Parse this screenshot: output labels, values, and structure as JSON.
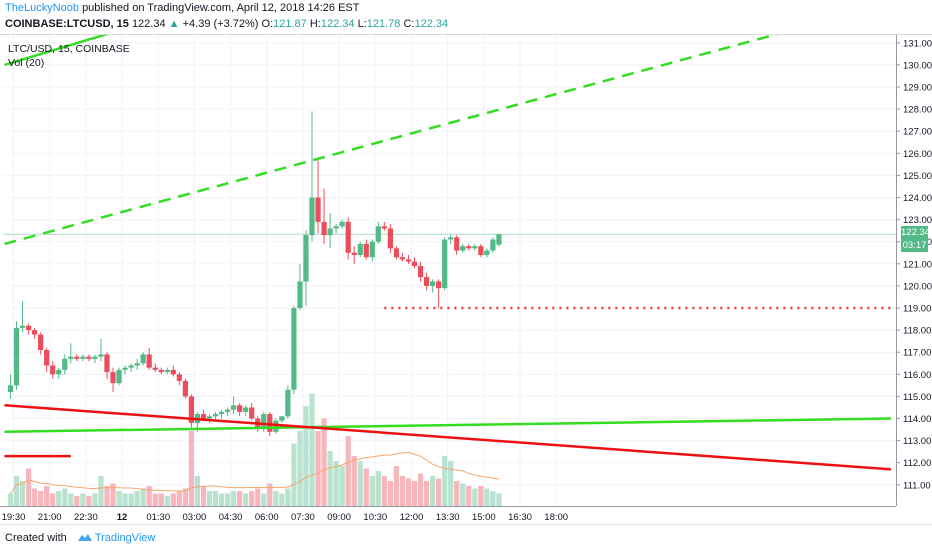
{
  "header": {
    "author": "TheLuckyNoob",
    "published": "published on TradingView.com, April 12, 2018 14:26 EST"
  },
  "ohlc": {
    "symbol": "COINBASE:LTCUSD, 15",
    "last": "122.34",
    "change": "+4.39 (+3.72%)",
    "o_label": "O:",
    "o": "121.87",
    "h_label": "H:",
    "h": "122.34",
    "l_label": "L:",
    "l": "121.78",
    "c_label": "C:",
    "c": "122.34"
  },
  "legend": {
    "series": "LTC/USD, 15, COINBASE",
    "volume": "Vol (20)"
  },
  "price_tags": {
    "last": "122.34",
    "countdown": "03:17"
  },
  "footer": {
    "created_with": "Created with",
    "brand": "TradingView"
  },
  "colors": {
    "up": "#26a69a",
    "up_candle": "#53b987",
    "down_candle": "#eb4d5c",
    "green_line": "#33dd22",
    "red_line": "#ee1111",
    "dotted": "#ee3333",
    "vol_up": "#b9e2cf",
    "vol_down": "#f6b6bc",
    "last_price_bg": "#53b987",
    "countdown_bg": "#53b987",
    "grid": "#f0f3fa"
  },
  "chart_data": {
    "type": "candlestick",
    "ylim": [
      110.5,
      132.2
    ],
    "y_ticks": [
      "111.00",
      "112.00",
      "113.00",
      "114.00",
      "115.00",
      "116.00",
      "117.00",
      "118.00",
      "119.00",
      "120.00",
      "121.00",
      "122.00",
      "123.00",
      "124.00",
      "125.00",
      "126.00",
      "127.00",
      "128.00",
      "129.00",
      "130.00",
      "131.00",
      "132.00"
    ],
    "x_ticks": [
      "19:30",
      "21:00",
      "22:30",
      "12",
      "01:30",
      "03:00",
      "04:30",
      "06:00",
      "07:30",
      "09:00",
      "10:30",
      "12:00",
      "13:30",
      "15:00",
      "16:30",
      "18:00"
    ],
    "bars_per_tick": 6,
    "candles": [
      {
        "o": 115.2,
        "h": 116.0,
        "l": 114.9,
        "c": 115.5
      },
      {
        "o": 115.5,
        "h": 118.4,
        "l": 115.3,
        "c": 118.1
      },
      {
        "o": 118.1,
        "h": 119.3,
        "l": 117.9,
        "c": 118.2
      },
      {
        "o": 118.2,
        "h": 118.3,
        "l": 117.8,
        "c": 118.0
      },
      {
        "o": 118.0,
        "h": 118.1,
        "l": 117.6,
        "c": 117.8
      },
      {
        "o": 117.8,
        "h": 117.9,
        "l": 116.9,
        "c": 117.1
      },
      {
        "o": 117.1,
        "h": 117.2,
        "l": 116.1,
        "c": 116.4
      },
      {
        "o": 116.4,
        "h": 116.6,
        "l": 115.8,
        "c": 116.0
      },
      {
        "o": 116.0,
        "h": 116.3,
        "l": 115.8,
        "c": 116.2
      },
      {
        "o": 116.2,
        "h": 116.9,
        "l": 116.0,
        "c": 116.7
      },
      {
        "o": 116.7,
        "h": 117.4,
        "l": 116.5,
        "c": 116.8
      },
      {
        "o": 116.8,
        "h": 116.9,
        "l": 116.6,
        "c": 116.7
      },
      {
        "o": 116.7,
        "h": 116.9,
        "l": 116.6,
        "c": 116.8
      },
      {
        "o": 116.8,
        "h": 116.9,
        "l": 116.6,
        "c": 116.7
      },
      {
        "o": 116.7,
        "h": 116.9,
        "l": 116.5,
        "c": 116.8
      },
      {
        "o": 116.8,
        "h": 117.6,
        "l": 116.6,
        "c": 116.9
      },
      {
        "o": 116.9,
        "h": 117.0,
        "l": 115.8,
        "c": 116.1
      },
      {
        "o": 116.1,
        "h": 116.3,
        "l": 115.2,
        "c": 115.6
      },
      {
        "o": 115.6,
        "h": 116.3,
        "l": 115.5,
        "c": 116.2
      },
      {
        "o": 116.2,
        "h": 116.4,
        "l": 116.0,
        "c": 116.3
      },
      {
        "o": 116.3,
        "h": 116.5,
        "l": 116.1,
        "c": 116.4
      },
      {
        "o": 116.4,
        "h": 116.7,
        "l": 116.2,
        "c": 116.5
      },
      {
        "o": 116.5,
        "h": 117.0,
        "l": 116.4,
        "c": 116.9
      },
      {
        "o": 116.9,
        "h": 117.2,
        "l": 116.2,
        "c": 116.3
      },
      {
        "o": 116.3,
        "h": 116.5,
        "l": 116.1,
        "c": 116.2
      },
      {
        "o": 116.2,
        "h": 116.3,
        "l": 116.0,
        "c": 116.1
      },
      {
        "o": 116.1,
        "h": 116.3,
        "l": 116.0,
        "c": 116.2
      },
      {
        "o": 116.2,
        "h": 116.4,
        "l": 115.9,
        "c": 116.0
      },
      {
        "o": 116.0,
        "h": 116.1,
        "l": 115.5,
        "c": 115.7
      },
      {
        "o": 115.7,
        "h": 115.8,
        "l": 114.9,
        "c": 115.0
      },
      {
        "o": 115.0,
        "h": 115.1,
        "l": 113.6,
        "c": 113.8
      },
      {
        "o": 113.8,
        "h": 114.3,
        "l": 113.4,
        "c": 114.2
      },
      {
        "o": 114.2,
        "h": 114.4,
        "l": 113.9,
        "c": 114.0
      },
      {
        "o": 114.0,
        "h": 114.2,
        "l": 113.8,
        "c": 114.1
      },
      {
        "o": 114.1,
        "h": 114.3,
        "l": 113.9,
        "c": 114.2
      },
      {
        "o": 114.2,
        "h": 114.4,
        "l": 114.0,
        "c": 114.3
      },
      {
        "o": 114.3,
        "h": 114.5,
        "l": 114.1,
        "c": 114.4
      },
      {
        "o": 114.4,
        "h": 115.0,
        "l": 114.2,
        "c": 114.6
      },
      {
        "o": 114.6,
        "h": 114.7,
        "l": 114.1,
        "c": 114.3
      },
      {
        "o": 114.3,
        "h": 114.6,
        "l": 114.1,
        "c": 114.5
      },
      {
        "o": 114.5,
        "h": 114.7,
        "l": 113.9,
        "c": 114.0
      },
      {
        "o": 114.0,
        "h": 114.1,
        "l": 113.4,
        "c": 113.6
      },
      {
        "o": 113.6,
        "h": 114.3,
        "l": 113.4,
        "c": 114.2
      },
      {
        "o": 114.2,
        "h": 114.3,
        "l": 113.2,
        "c": 113.4
      },
      {
        "o": 113.4,
        "h": 114.0,
        "l": 113.3,
        "c": 113.9
      },
      {
        "o": 113.9,
        "h": 114.1,
        "l": 113.8,
        "c": 114.1
      },
      {
        "o": 114.1,
        "h": 115.5,
        "l": 114.0,
        "c": 115.3
      },
      {
        "o": 115.3,
        "h": 119.1,
        "l": 115.1,
        "c": 119.0
      },
      {
        "o": 119.0,
        "h": 121.0,
        "l": 118.9,
        "c": 120.2
      },
      {
        "o": 120.2,
        "h": 122.5,
        "l": 119.1,
        "c": 122.3
      },
      {
        "o": 122.3,
        "h": 127.9,
        "l": 122.0,
        "c": 124.0
      },
      {
        "o": 124.0,
        "h": 125.7,
        "l": 122.4,
        "c": 122.9
      },
      {
        "o": 122.9,
        "h": 124.4,
        "l": 121.9,
        "c": 122.3
      },
      {
        "o": 122.3,
        "h": 123.3,
        "l": 121.7,
        "c": 122.6
      },
      {
        "o": 122.6,
        "h": 122.8,
        "l": 122.4,
        "c": 122.7
      },
      {
        "o": 122.7,
        "h": 123.0,
        "l": 122.6,
        "c": 122.9
      },
      {
        "o": 122.9,
        "h": 123.1,
        "l": 121.2,
        "c": 121.5
      },
      {
        "o": 121.5,
        "h": 121.8,
        "l": 121.0,
        "c": 121.4
      },
      {
        "o": 121.4,
        "h": 122.0,
        "l": 121.3,
        "c": 121.9
      },
      {
        "o": 121.9,
        "h": 122.1,
        "l": 121.2,
        "c": 121.3
      },
      {
        "o": 121.3,
        "h": 122.1,
        "l": 121.1,
        "c": 122.0
      },
      {
        "o": 122.0,
        "h": 122.9,
        "l": 121.9,
        "c": 122.7
      },
      {
        "o": 122.7,
        "h": 122.9,
        "l": 122.5,
        "c": 122.6
      },
      {
        "o": 122.6,
        "h": 122.8,
        "l": 121.5,
        "c": 121.7
      },
      {
        "o": 121.7,
        "h": 121.8,
        "l": 121.2,
        "c": 121.3
      },
      {
        "o": 121.3,
        "h": 121.5,
        "l": 121.1,
        "c": 121.2
      },
      {
        "o": 121.2,
        "h": 121.4,
        "l": 121.0,
        "c": 121.1
      },
      {
        "o": 121.1,
        "h": 121.3,
        "l": 120.8,
        "c": 120.9
      },
      {
        "o": 120.9,
        "h": 121.1,
        "l": 120.2,
        "c": 120.4
      },
      {
        "o": 120.4,
        "h": 120.6,
        "l": 119.8,
        "c": 120.0
      },
      {
        "o": 120.0,
        "h": 120.3,
        "l": 119.7,
        "c": 120.2
      },
      {
        "o": 120.2,
        "h": 120.3,
        "l": 119.0,
        "c": 119.9
      },
      {
        "o": 119.9,
        "h": 122.2,
        "l": 119.8,
        "c": 122.1
      },
      {
        "o": 122.1,
        "h": 122.3,
        "l": 121.9,
        "c": 122.2
      },
      {
        "o": 122.2,
        "h": 122.3,
        "l": 121.4,
        "c": 121.6
      },
      {
        "o": 121.6,
        "h": 121.9,
        "l": 121.5,
        "c": 121.8
      },
      {
        "o": 121.8,
        "h": 121.9,
        "l": 121.6,
        "c": 121.7
      },
      {
        "o": 121.7,
        "h": 121.9,
        "l": 121.6,
        "c": 121.8
      },
      {
        "o": 121.8,
        "h": 121.9,
        "l": 121.3,
        "c": 121.4
      },
      {
        "o": 121.4,
        "h": 121.7,
        "l": 121.3,
        "c": 121.6
      },
      {
        "o": 121.6,
        "h": 122.2,
        "l": 121.5,
        "c": 122.1
      },
      {
        "o": 121.87,
        "h": 122.34,
        "l": 121.78,
        "c": 122.34
      }
    ],
    "volume": [
      0.05,
      0.12,
      0.1,
      0.15,
      0.07,
      0.06,
      0.08,
      0.05,
      0.06,
      0.07,
      0.05,
      0.04,
      0.05,
      0.04,
      0.05,
      0.12,
      0.08,
      0.09,
      0.06,
      0.05,
      0.05,
      0.06,
      0.07,
      0.08,
      0.05,
      0.05,
      0.04,
      0.05,
      0.06,
      0.07,
      0.3,
      0.12,
      0.08,
      0.06,
      0.06,
      0.05,
      0.05,
      0.06,
      0.06,
      0.05,
      0.06,
      0.07,
      0.05,
      0.09,
      0.06,
      0.05,
      0.07,
      0.25,
      0.3,
      0.4,
      0.45,
      0.3,
      0.35,
      0.22,
      0.18,
      0.16,
      0.28,
      0.2,
      0.18,
      0.15,
      0.12,
      0.14,
      0.12,
      0.1,
      0.16,
      0.12,
      0.11,
      0.1,
      0.13,
      0.1,
      0.12,
      0.11,
      0.2,
      0.18,
      0.1,
      0.09,
      0.08,
      0.07,
      0.08,
      0.07,
      0.06,
      0.05
    ],
    "vol_scale_max": 0.48,
    "trendlines": [
      {
        "style": "solid",
        "color": "green",
        "points": [
          [
            -1,
            130.0
          ],
          [
            27,
            132.3
          ]
        ]
      },
      {
        "style": "dashed",
        "color": "green",
        "points": [
          [
            -1,
            121.9
          ],
          [
            138,
            132.2
          ]
        ]
      },
      {
        "style": "solid",
        "color": "green",
        "points": [
          [
            -1,
            113.4
          ],
          [
            146,
            114.0
          ]
        ]
      },
      {
        "style": "solid",
        "color": "red",
        "points": [
          [
            -1,
            114.6
          ],
          [
            146,
            111.7
          ]
        ]
      },
      {
        "style": "solid",
        "color": "red",
        "points": [
          [
            -1,
            112.3
          ],
          [
            10,
            112.3
          ]
        ]
      },
      {
        "style": "dotted",
        "color": "red",
        "points": [
          [
            62,
            119.0
          ],
          [
            146,
            119.0
          ]
        ]
      }
    ],
    "last_price": 122.34
  }
}
